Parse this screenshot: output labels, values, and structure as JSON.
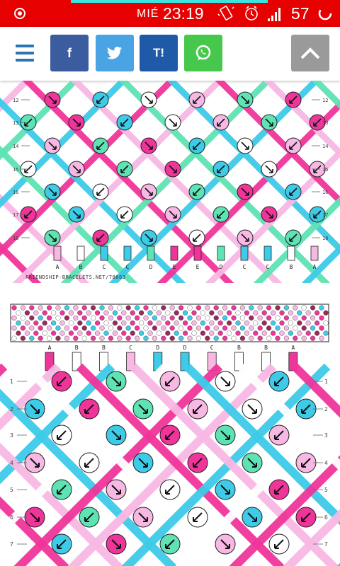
{
  "status_bar": {
    "day": "MIÉ",
    "time": "23:19",
    "battery": "57",
    "icons": [
      "location-icon",
      "vibrate-icon",
      "alarm-icon",
      "signal-icon",
      "battery-icon"
    ]
  },
  "app_bar": {
    "menu_icon": "hamburger-menu-icon",
    "share": {
      "facebook": "f",
      "twitter": "twitter-bird-icon",
      "tumblr": "T!",
      "whatsapp": "whatsapp-icon"
    },
    "scroll_top_icon": "chevron-up-icon"
  },
  "colors": {
    "magenta": "#f0359a",
    "pink_light": "#f8b8e4",
    "cyan": "#3ecbe8",
    "mint": "#5fe3b4",
    "white": "#ffffff",
    "outline": "#222222"
  },
  "pattern_top": {
    "row_labels": [
      "12",
      "13",
      "14",
      "15",
      "16",
      "17",
      "18"
    ],
    "bottom_strings": [
      "A",
      "B",
      "C",
      "C",
      "D",
      "E",
      "E",
      "D",
      "C",
      "C",
      "B",
      "A"
    ],
    "credit": "FRIENDSHIP-BRACELETS.NET/78663"
  },
  "pattern_bottom": {
    "top_strings": [
      "A",
      "B",
      "B",
      "C",
      "D",
      "D",
      "C",
      "B",
      "B",
      "A"
    ],
    "row_labels": [
      "1",
      "2",
      "3",
      "4",
      "5",
      "6",
      "7"
    ]
  }
}
